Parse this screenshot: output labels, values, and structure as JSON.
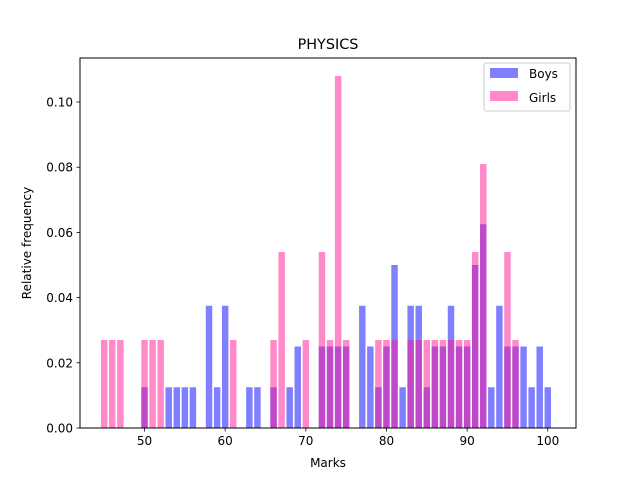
{
  "chart_data": {
    "type": "bar",
    "title": "PHYSICS",
    "xlabel": "Marks",
    "ylabel": "Relative frequency",
    "xlim": [
      42,
      103.5
    ],
    "ylim": [
      0,
      0.1135
    ],
    "xticks": [
      50,
      60,
      70,
      80,
      90,
      100
    ],
    "xtick_labels": [
      "50",
      "60",
      "70",
      "80",
      "90",
      "100"
    ],
    "yticks": [
      0,
      0.02,
      0.04,
      0.06,
      0.08,
      0.1
    ],
    "ytick_labels": [
      "0.00",
      "0.02",
      "0.04",
      "0.06",
      "0.08",
      "0.10"
    ],
    "grid": false,
    "legend_position": "top-right",
    "bar_width": 0.8,
    "series": [
      {
        "name": "Boys",
        "color": "#0000ff",
        "opacity": 0.5,
        "x": [
          50,
          53,
          54,
          55,
          56,
          58,
          59,
          60,
          63,
          64,
          66,
          68,
          69,
          72,
          73,
          74,
          75,
          77,
          78,
          79,
          80,
          81,
          82,
          83,
          84,
          85,
          86,
          87,
          88,
          89,
          90,
          91,
          92,
          93,
          94,
          95,
          96,
          97,
          98,
          99,
          100
        ],
        "values": [
          0.0125,
          0.0125,
          0.0125,
          0.0125,
          0.0125,
          0.0375,
          0.0125,
          0.0375,
          0.0125,
          0.0125,
          0.0125,
          0.0125,
          0.025,
          0.025,
          0.025,
          0.025,
          0.025,
          0.0375,
          0.025,
          0.0125,
          0.025,
          0.05,
          0.0125,
          0.0375,
          0.0375,
          0.0125,
          0.025,
          0.025,
          0.0375,
          0.025,
          0.025,
          0.05,
          0.0625,
          0.0125,
          0.0375,
          0.025,
          0.025,
          0.025,
          0.0125,
          0.025,
          0.0125
        ]
      },
      {
        "name": "Girls",
        "color": "#ff1493",
        "opacity": 0.5,
        "x": [
          45,
          46,
          47,
          50,
          51,
          52,
          61,
          66,
          67,
          70,
          72,
          73,
          74,
          75,
          79,
          80,
          81,
          83,
          84,
          85,
          86,
          87,
          88,
          89,
          90,
          91,
          92,
          95,
          96
        ],
        "values": [
          0.027,
          0.027,
          0.027,
          0.027,
          0.027,
          0.027,
          0.027,
          0.027,
          0.054,
          0.027,
          0.054,
          0.027,
          0.108,
          0.027,
          0.027,
          0.027,
          0.027,
          0.027,
          0.027,
          0.027,
          0.027,
          0.027,
          0.027,
          0.027,
          0.027,
          0.054,
          0.081,
          0.054,
          0.027
        ]
      }
    ]
  }
}
